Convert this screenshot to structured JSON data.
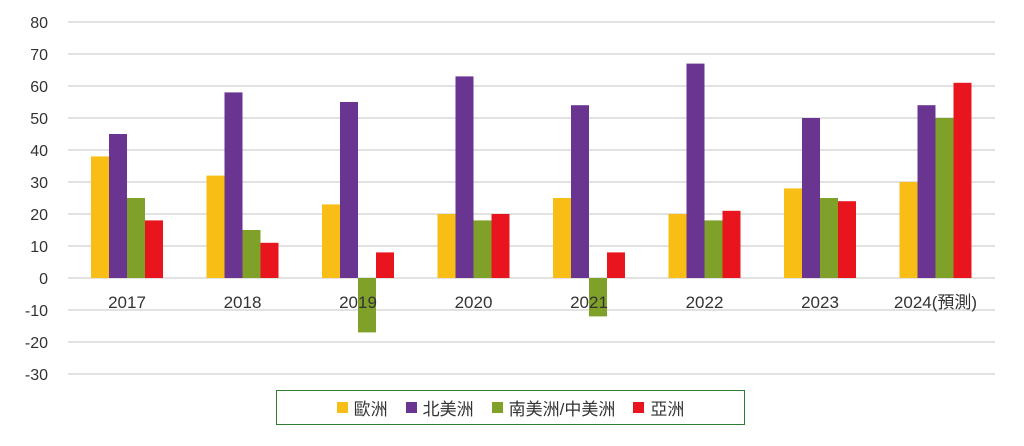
{
  "chart_data": {
    "type": "bar",
    "title": "",
    "xlabel": "",
    "ylabel": "",
    "ylim": [
      -30,
      80
    ],
    "yticks": [
      80,
      70,
      60,
      50,
      40,
      30,
      20,
      10,
      0,
      -10,
      -20,
      -30
    ],
    "grid": true,
    "legend_position": "bottom",
    "categories": [
      "2017",
      "2018",
      "2019",
      "2020",
      "2021",
      "2022",
      "2023",
      "2024(預測)"
    ],
    "series": [
      {
        "name": "歐洲",
        "color": "#F9BE16",
        "values": [
          38,
          32,
          23,
          20,
          25,
          20,
          28,
          30
        ]
      },
      {
        "name": "北美洲",
        "color": "#6A3590",
        "values": [
          45,
          58,
          55,
          63,
          54,
          67,
          50,
          54
        ]
      },
      {
        "name": "南美洲/中美洲",
        "color": "#7FA12A",
        "values": [
          25,
          15,
          -17,
          18,
          -12,
          18,
          25,
          50
        ]
      },
      {
        "name": "亞洲",
        "color": "#E8151F",
        "values": [
          18,
          11,
          8,
          20,
          8,
          21,
          24,
          61
        ]
      }
    ]
  }
}
